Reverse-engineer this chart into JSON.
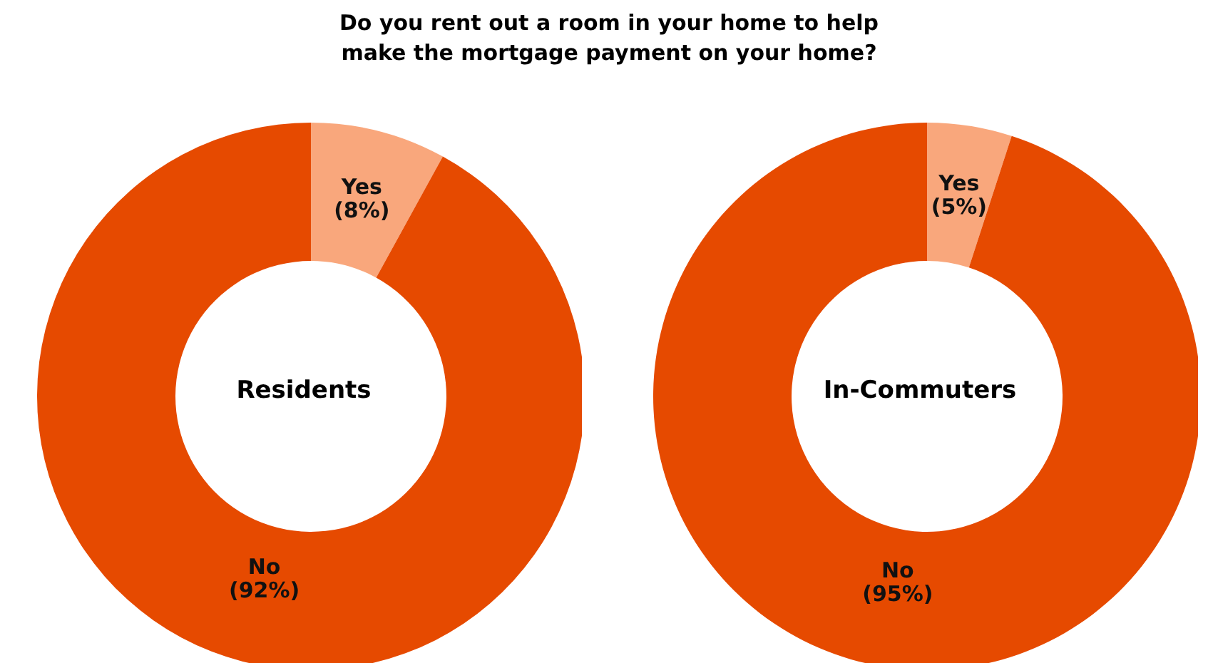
{
  "chart_data": [
    {
      "type": "donut",
      "title": "Do you rent out a room in your home to help make the mortgage payment on your home?",
      "subtitle": "Residents",
      "categories": [
        "Yes",
        "No"
      ],
      "values": [
        8,
        92
      ],
      "colors": [
        "#f9a77c",
        "#e64a00"
      ],
      "value_labels": [
        "(8%)",
        "(92%)"
      ],
      "legend": false
    },
    {
      "type": "donut",
      "subtitle": "In-Commuters",
      "categories": [
        "Yes",
        "No"
      ],
      "values": [
        5,
        95
      ],
      "colors": [
        "#f9a77c",
        "#e64a00"
      ],
      "value_labels": [
        "(5%)",
        "(95%)"
      ],
      "legend": false
    }
  ]
}
